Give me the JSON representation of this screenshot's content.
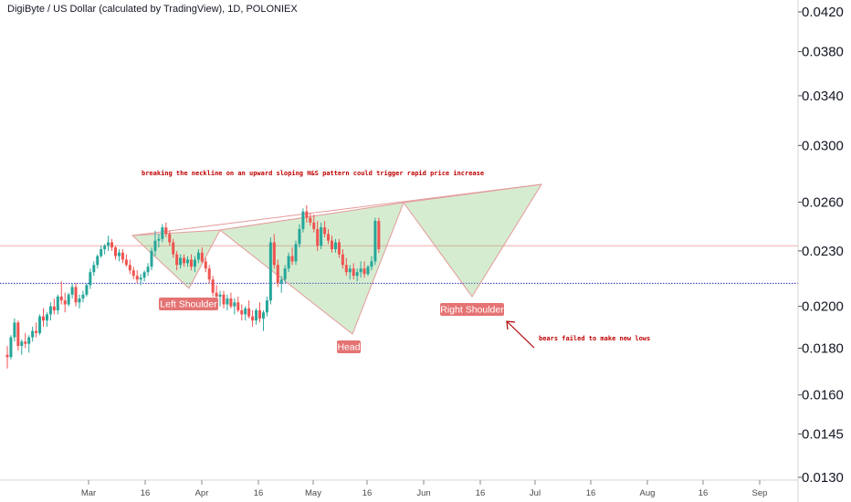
{
  "header": {
    "title": "DigiByte / US Dollar (calculated by TradingView), 1D, POLONIEX"
  },
  "chart_data": {
    "type": "candlestick",
    "symbol": "DigiByte / US Dollar",
    "interval": "1D",
    "exchange": "POLONIEX",
    "y_ticks": [
      "0.0420",
      "0.0380",
      "0.0340",
      "0.0300",
      "0.0260",
      "0.0230",
      "0.0200",
      "0.0180",
      "0.0160",
      "0.0145",
      "0.0130"
    ],
    "x_ticks": [
      "Mar",
      "16",
      "Apr",
      "16",
      "May",
      "16",
      "Jun",
      "16",
      "Jul",
      "16",
      "Aug",
      "16",
      "Sep"
    ],
    "horizontal_lines": [
      {
        "price": 0.0233,
        "color": "#f2a9a9",
        "style": "solid"
      },
      {
        "price": 0.0212,
        "color": "#2a2ad0",
        "style": "dotted"
      }
    ],
    "annotations": {
      "left_shoulder": "Left Shoulder",
      "head": "Head",
      "right_shoulder": "Right Shoulder",
      "neckline_note": "breaking the neckline on an upward sloping H&S pattern could trigger rapid price increase",
      "bears_note": "bears failed to make new lows"
    },
    "candles": [
      [
        0.0177,
        0.0181,
        0.0171,
        0.0176
      ],
      [
        0.0176,
        0.0186,
        0.0175,
        0.0185
      ],
      [
        0.0185,
        0.0194,
        0.0183,
        0.0192
      ],
      [
        0.0192,
        0.0193,
        0.0179,
        0.0181
      ],
      [
        0.0181,
        0.0184,
        0.0177,
        0.0183
      ],
      [
        0.0183,
        0.0187,
        0.018,
        0.0182
      ],
      [
        0.0182,
        0.0186,
        0.0178,
        0.0185
      ],
      [
        0.0185,
        0.019,
        0.0183,
        0.0188
      ],
      [
        0.0188,
        0.0192,
        0.0185,
        0.0187
      ],
      [
        0.0187,
        0.0196,
        0.0186,
        0.0195
      ],
      [
        0.0195,
        0.0199,
        0.019,
        0.0193
      ],
      [
        0.0193,
        0.0197,
        0.019,
        0.0196
      ],
      [
        0.0196,
        0.0202,
        0.0193,
        0.02
      ],
      [
        0.02,
        0.0204,
        0.0196,
        0.0198
      ],
      [
        0.0198,
        0.0206,
        0.0196,
        0.0205
      ],
      [
        0.0205,
        0.0213,
        0.0201,
        0.0203
      ],
      [
        0.0203,
        0.0207,
        0.0197,
        0.0201
      ],
      [
        0.0201,
        0.0207,
        0.02,
        0.0206
      ],
      [
        0.0206,
        0.0212,
        0.0204,
        0.021
      ],
      [
        0.021,
        0.0212,
        0.02,
        0.0202
      ],
      [
        0.0202,
        0.0206,
        0.0199,
        0.0204
      ],
      [
        0.0204,
        0.0208,
        0.0202,
        0.0206
      ],
      [
        0.0206,
        0.0212,
        0.0205,
        0.0211
      ],
      [
        0.0211,
        0.022,
        0.0209,
        0.0218
      ],
      [
        0.0218,
        0.0224,
        0.0216,
        0.0222
      ],
      [
        0.0222,
        0.0228,
        0.022,
        0.0227
      ],
      [
        0.0227,
        0.0233,
        0.0226,
        0.0231
      ],
      [
        0.0231,
        0.0234,
        0.0228,
        0.0233
      ],
      [
        0.0233,
        0.0239,
        0.023,
        0.0235
      ],
      [
        0.0235,
        0.0237,
        0.023,
        0.0232
      ],
      [
        0.0232,
        0.0233,
        0.0225,
        0.0227
      ],
      [
        0.0227,
        0.0231,
        0.0224,
        0.0229
      ],
      [
        0.0229,
        0.0231,
        0.0223,
        0.0225
      ],
      [
        0.0225,
        0.0228,
        0.0221,
        0.0222
      ],
      [
        0.0222,
        0.0225,
        0.0217,
        0.0219
      ],
      [
        0.0219,
        0.0221,
        0.0214,
        0.0216
      ],
      [
        0.0216,
        0.0219,
        0.0212,
        0.0214
      ],
      [
        0.0214,
        0.0217,
        0.0211,
        0.0215
      ],
      [
        0.0215,
        0.0219,
        0.0213,
        0.0218
      ],
      [
        0.0218,
        0.0223,
        0.0216,
        0.0221
      ],
      [
        0.0221,
        0.0232,
        0.0219,
        0.023
      ],
      [
        0.023,
        0.0242,
        0.0227,
        0.0236
      ],
      [
        0.0236,
        0.024,
        0.0232,
        0.0237
      ],
      [
        0.0237,
        0.0246,
        0.0235,
        0.0244
      ],
      [
        0.0244,
        0.0247,
        0.0238,
        0.024
      ],
      [
        0.024,
        0.0242,
        0.0233,
        0.0235
      ],
      [
        0.0235,
        0.0237,
        0.0226,
        0.0228
      ],
      [
        0.0228,
        0.023,
        0.0219,
        0.0222
      ],
      [
        0.0222,
        0.0228,
        0.022,
        0.0226
      ],
      [
        0.0226,
        0.0228,
        0.0221,
        0.0223
      ],
      [
        0.0223,
        0.0227,
        0.0221,
        0.0225
      ],
      [
        0.0225,
        0.0228,
        0.0219,
        0.0221
      ],
      [
        0.0221,
        0.0227,
        0.0218,
        0.0225
      ],
      [
        0.0225,
        0.0231,
        0.0223,
        0.0229
      ],
      [
        0.0229,
        0.0232,
        0.0223,
        0.0224
      ],
      [
        0.0224,
        0.0226,
        0.0218,
        0.022
      ],
      [
        0.022,
        0.0222,
        0.0212,
        0.0214
      ],
      [
        0.0214,
        0.0216,
        0.0205,
        0.0207
      ],
      [
        0.0207,
        0.0211,
        0.0203,
        0.0205
      ],
      [
        0.0205,
        0.0208,
        0.02,
        0.0206
      ],
      [
        0.0206,
        0.0208,
        0.0199,
        0.0201
      ],
      [
        0.0201,
        0.0206,
        0.0198,
        0.0204
      ],
      [
        0.0204,
        0.0207,
        0.0199,
        0.02
      ],
      [
        0.02,
        0.0204,
        0.0196,
        0.0202
      ],
      [
        0.0202,
        0.0205,
        0.0197,
        0.0198
      ],
      [
        0.0198,
        0.0201,
        0.0193,
        0.0196
      ],
      [
        0.0196,
        0.02,
        0.0193,
        0.0199
      ],
      [
        0.0199,
        0.0203,
        0.0194,
        0.0195
      ],
      [
        0.0195,
        0.0198,
        0.019,
        0.0193
      ],
      [
        0.0193,
        0.0199,
        0.0191,
        0.0198
      ],
      [
        0.0198,
        0.0202,
        0.0192,
        0.0194
      ],
      [
        0.0194,
        0.0198,
        0.0188,
        0.0197
      ],
      [
        0.0197,
        0.0205,
        0.0195,
        0.0203
      ],
      [
        0.0203,
        0.0238,
        0.0201,
        0.0235
      ],
      [
        0.0235,
        0.024,
        0.022,
        0.0222
      ],
      [
        0.0222,
        0.0225,
        0.021,
        0.0212
      ],
      [
        0.0212,
        0.0216,
        0.0207,
        0.0214
      ],
      [
        0.0214,
        0.0222,
        0.0212,
        0.022
      ],
      [
        0.022,
        0.0229,
        0.0218,
        0.0227
      ],
      [
        0.0227,
        0.0232,
        0.0222,
        0.0224
      ],
      [
        0.0224,
        0.0236,
        0.0222,
        0.0234
      ],
      [
        0.0234,
        0.0246,
        0.0232,
        0.0243
      ],
      [
        0.0243,
        0.0256,
        0.0241,
        0.0254
      ],
      [
        0.0254,
        0.0258,
        0.0247,
        0.025
      ],
      [
        0.025,
        0.0253,
        0.0245,
        0.0247
      ],
      [
        0.0247,
        0.0252,
        0.0241,
        0.0243
      ],
      [
        0.0243,
        0.0248,
        0.023,
        0.0233
      ],
      [
        0.0233,
        0.0247,
        0.0231,
        0.0244
      ],
      [
        0.0244,
        0.0248,
        0.0238,
        0.024
      ],
      [
        0.024,
        0.0243,
        0.0234,
        0.0236
      ],
      [
        0.0236,
        0.0239,
        0.0229,
        0.0231
      ],
      [
        0.0231,
        0.0237,
        0.0229,
        0.0235
      ],
      [
        0.0235,
        0.0237,
        0.0226,
        0.0228
      ],
      [
        0.0228,
        0.0231,
        0.022,
        0.0222
      ],
      [
        0.0222,
        0.0226,
        0.0216,
        0.0218
      ],
      [
        0.0218,
        0.0222,
        0.0214,
        0.022
      ],
      [
        0.022,
        0.0223,
        0.0214,
        0.0216
      ],
      [
        0.0216,
        0.022,
        0.0213,
        0.0218
      ],
      [
        0.0218,
        0.0224,
        0.0215,
        0.022
      ],
      [
        0.022,
        0.0224,
        0.0215,
        0.0217
      ],
      [
        0.0217,
        0.0222,
        0.0216,
        0.0221
      ],
      [
        0.0221,
        0.0227,
        0.0219,
        0.0224
      ],
      [
        0.0224,
        0.025,
        0.0222,
        0.0248
      ],
      [
        0.0248,
        0.025,
        0.0229,
        0.0231
      ]
    ]
  }
}
